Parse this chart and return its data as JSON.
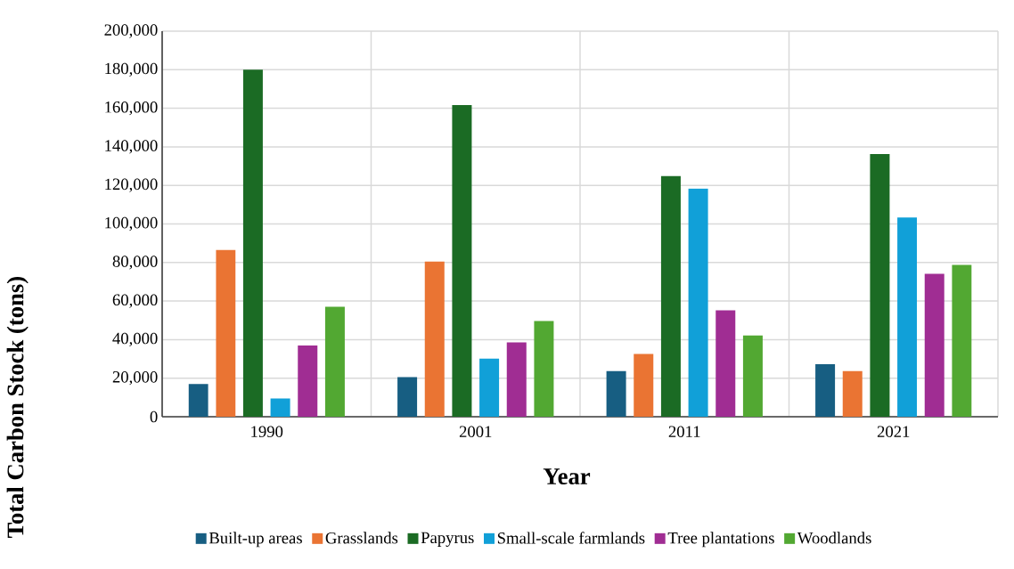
{
  "chart_data": {
    "type": "bar",
    "xlabel": "Year",
    "ylabel": "Total Carbon Stock (tons)",
    "categories": [
      "1990",
      "2001",
      "2011",
      "2021"
    ],
    "series": [
      {
        "name": "Built-up areas",
        "color": "#175e82",
        "values": [
          17000,
          20500,
          23700,
          27200
        ]
      },
      {
        "name": "Grasslands",
        "color": "#ea7433",
        "values": [
          86500,
          80500,
          32600,
          23700
        ]
      },
      {
        "name": "Papyrus",
        "color": "#1b6b24",
        "values": [
          180000,
          161700,
          124800,
          136300
        ]
      },
      {
        "name": "Small-scale farmlands",
        "color": "#11a0d8",
        "values": [
          9500,
          30100,
          118300,
          103400
        ]
      },
      {
        "name": "Tree plantations",
        "color": "#a02d93",
        "values": [
          37000,
          38600,
          55200,
          74100
        ]
      },
      {
        "name": "Woodlands",
        "color": "#52a832",
        "values": [
          57000,
          49600,
          42100,
          78700
        ]
      }
    ],
    "ylim": [
      0,
      200000
    ],
    "yticks": [
      {
        "value": 0,
        "label": "0"
      },
      {
        "value": 20000,
        "label": "20,000"
      },
      {
        "value": 40000,
        "label": "40,000"
      },
      {
        "value": 60000,
        "label": "60,000"
      },
      {
        "value": 80000,
        "label": "80,000"
      },
      {
        "value": 100000,
        "label": "100,000"
      },
      {
        "value": 120000,
        "label": "120,000"
      },
      {
        "value": 140000,
        "label": "140,000"
      },
      {
        "value": 160000,
        "label": "160,000"
      },
      {
        "value": 180000,
        "label": "180,000"
      },
      {
        "value": 200000,
        "label": "200,000"
      }
    ],
    "grid": true,
    "legend": "bottom"
  }
}
